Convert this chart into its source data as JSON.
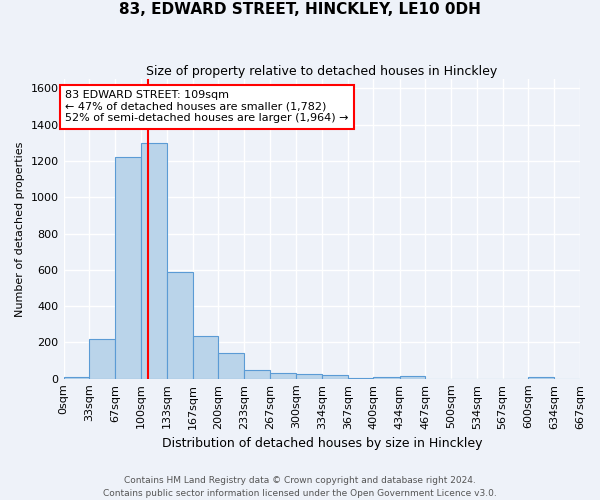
{
  "title": "83, EDWARD STREET, HINCKLEY, LE10 0DH",
  "subtitle": "Size of property relative to detached houses in Hinckley",
  "xlabel": "Distribution of detached houses by size in Hinckley",
  "ylabel": "Number of detached properties",
  "bin_edges": [
    0,
    33,
    67,
    100,
    133,
    167,
    200,
    233,
    267,
    300,
    334,
    367,
    400,
    434,
    467,
    500,
    534,
    567,
    600,
    634,
    667
  ],
  "bar_heights": [
    10,
    220,
    1220,
    1300,
    590,
    235,
    140,
    50,
    30,
    25,
    20,
    5,
    10,
    15,
    0,
    0,
    0,
    0,
    10,
    0
  ],
  "bar_color": "#bad4ea",
  "bar_edge_color": "#5b9bd5",
  "property_line_x": 109,
  "property_line_color": "red",
  "annotation_line1": "83 EDWARD STREET: 109sqm",
  "annotation_line2": "← 47% of detached houses are smaller (1,782)",
  "annotation_line3": "52% of semi-detached houses are larger (1,964) →",
  "annotation_box_color": "white",
  "annotation_box_edge_color": "red",
  "ylim": [
    0,
    1650
  ],
  "yticks": [
    0,
    200,
    400,
    600,
    800,
    1000,
    1200,
    1400,
    1600
  ],
  "xtick_labels": [
    "0sqm",
    "33sqm",
    "67sqm",
    "100sqm",
    "133sqm",
    "167sqm",
    "200sqm",
    "233sqm",
    "267sqm",
    "300sqm",
    "334sqm",
    "367sqm",
    "400sqm",
    "434sqm",
    "467sqm",
    "500sqm",
    "534sqm",
    "567sqm",
    "600sqm",
    "634sqm",
    "667sqm"
  ],
  "footer_text": "Contains HM Land Registry data © Crown copyright and database right 2024.\nContains public sector information licensed under the Open Government Licence v3.0.",
  "background_color": "#eef2f9",
  "grid_color": "white",
  "tick_fontsize": 8,
  "ylabel_fontsize": 8,
  "xlabel_fontsize": 9,
  "title_fontsize": 11,
  "subtitle_fontsize": 9,
  "annotation_fontsize": 8
}
